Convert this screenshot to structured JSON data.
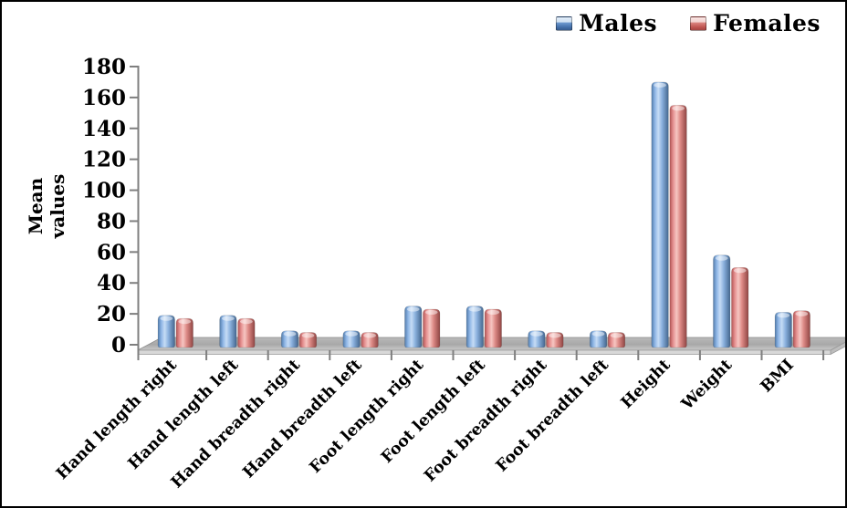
{
  "chart_data": {
    "type": "bar",
    "title": "",
    "ylabel": "Mean values",
    "xlabel": "",
    "ylim": [
      0,
      180
    ],
    "ytick_step": 20,
    "grid": false,
    "legend_position": "top-right",
    "style": "3d-rounded-bars",
    "categories": [
      "Hand length right",
      "Hand length left",
      "Hand breadth right",
      "Hand breadth left",
      "Foot length right",
      "Foot length left",
      "Foot breadth right",
      "Foot breadth left",
      "Height",
      "Weight",
      "BMI"
    ],
    "series": [
      {
        "name": "Males",
        "color": "#6b97ce",
        "values": [
          19,
          19,
          9,
          9,
          25,
          25,
          9,
          9,
          170,
          58,
          21
        ]
      },
      {
        "name": "Females",
        "color": "#d9827d",
        "values": [
          17,
          17,
          8,
          8,
          23,
          23,
          8,
          8,
          155,
          50,
          22
        ]
      }
    ],
    "yticks": [
      0,
      20,
      40,
      60,
      80,
      100,
      120,
      140,
      160,
      180
    ]
  },
  "legend": {
    "males_label": "Males",
    "females_label": "Females"
  },
  "colors": {
    "axis_gray": "#7f7f7f",
    "floor_top_dark": "#9c9c9c",
    "floor_top_light": "#cccccc",
    "floor_front": "#d8d8d8",
    "text_black": "#000000"
  }
}
